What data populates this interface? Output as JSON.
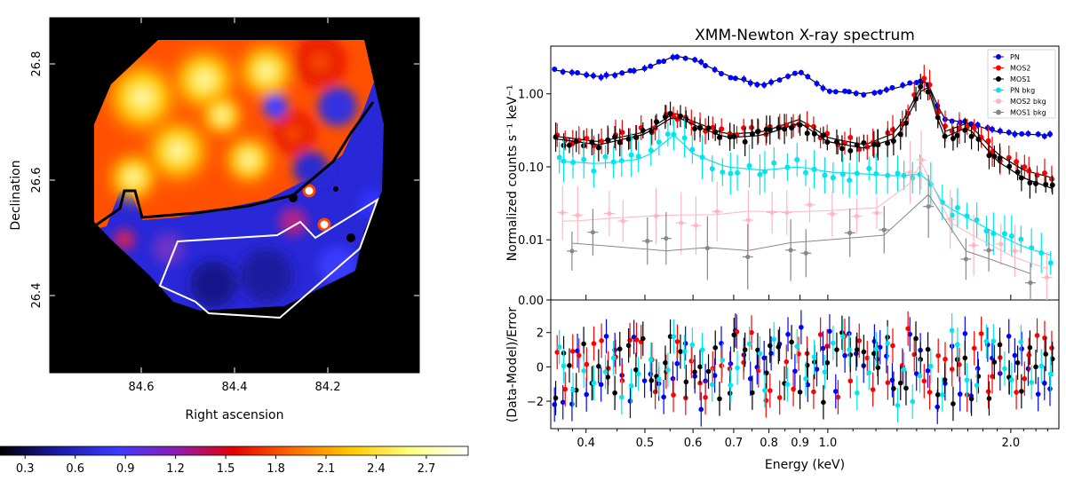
{
  "chart_data": [
    {
      "type": "heatmap",
      "xlabel": "Right ascension",
      "ylabel": "Declination",
      "xlim": [
        84.75,
        84.05
      ],
      "ylim": [
        26.24,
        26.87
      ],
      "x_ticks": [
        "84.6",
        "84.4",
        "84.2"
      ],
      "x_tick_values": [
        84.6,
        84.4,
        84.2
      ],
      "y_ticks": [
        "26.4",
        "26.6",
        "26.8"
      ],
      "y_tick_values": [
        26.4,
        26.6,
        26.8
      ],
      "colorbar": {
        "range": [
          0.15,
          2.95
        ],
        "ticks": [
          "0.3",
          "0.6",
          "0.9",
          "1.2",
          "1.5",
          "1.8",
          "2.1",
          "2.4",
          "2.7"
        ],
        "tick_values": [
          0.3,
          0.6,
          0.9,
          1.2,
          1.5,
          1.8,
          2.1,
          2.4,
          2.7
        ],
        "colors": [
          "#000000",
          "#1a1aa8",
          "#3b3bff",
          "#8c1cb4",
          "#e60000",
          "#ff6a00",
          "#ffc800",
          "#ffff80",
          "#ffffff"
        ]
      },
      "grid": false
    },
    {
      "type": "scatter",
      "title": "XMM-Newton X-ray spectrum",
      "xlabel": "Energy (keV)",
      "ylabel": "Normalized counts s⁻¹ keV⁻¹",
      "xscale": "log",
      "xlim": [
        0.35,
        2.4
      ],
      "ylim": [
        0.0015,
        4.5
      ],
      "x_ticks": [
        "0.4",
        "0.5",
        "0.6",
        "0.7",
        "0.8",
        "0.9",
        "1.0",
        "2.0"
      ],
      "x_tick_values": [
        0.4,
        0.5,
        0.6,
        0.7,
        0.8,
        0.9,
        1.0,
        2.0
      ],
      "y_ticks": [
        "0.00",
        "0.01",
        "0.10",
        "1.00"
      ],
      "y_tick_values": [
        0.0015,
        0.01,
        0.1,
        1.0
      ],
      "legend_position": "top-right",
      "series": [
        {
          "name": "PN",
          "color": "#0000ff",
          "x": [
            0.36,
            0.42,
            0.5,
            0.56,
            0.6,
            0.68,
            0.78,
            0.9,
            1.0,
            1.15,
            1.3,
            1.45,
            1.55,
            1.7,
            1.9,
            2.1,
            2.35
          ],
          "y": [
            2.1,
            1.7,
            2.2,
            3.3,
            3.0,
            1.8,
            1.3,
            2.0,
            1.1,
            1.0,
            1.2,
            1.6,
            0.45,
            0.4,
            0.3,
            0.28,
            0.27
          ]
        },
        {
          "name": "MOS2",
          "color": "#ff0000",
          "x": [
            0.36,
            0.42,
            0.5,
            0.56,
            0.6,
            0.68,
            0.78,
            0.9,
            1.0,
            1.15,
            1.3,
            1.45,
            1.55,
            1.7,
            1.9,
            2.1,
            2.35
          ],
          "y": [
            0.26,
            0.22,
            0.3,
            0.55,
            0.42,
            0.28,
            0.3,
            0.45,
            0.25,
            0.2,
            0.3,
            1.7,
            0.3,
            0.4,
            0.15,
            0.09,
            0.07
          ]
        },
        {
          "name": "MOS1",
          "color": "#000000",
          "x": [
            0.36,
            0.42,
            0.5,
            0.56,
            0.6,
            0.68,
            0.78,
            0.9,
            1.0,
            1.15,
            1.3,
            1.45,
            1.55,
            1.7,
            1.9,
            2.1,
            2.35
          ],
          "y": [
            0.24,
            0.2,
            0.28,
            0.5,
            0.38,
            0.25,
            0.27,
            0.4,
            0.22,
            0.18,
            0.25,
            1.5,
            0.25,
            0.35,
            0.12,
            0.07,
            0.05
          ]
        },
        {
          "name": "PN bkg",
          "color": "#00e5ee",
          "x": [
            0.36,
            0.42,
            0.5,
            0.56,
            0.6,
            0.68,
            0.78,
            0.9,
            1.0,
            1.15,
            1.3,
            1.45,
            1.55,
            1.7,
            1.9,
            2.1,
            2.35
          ],
          "y": [
            0.12,
            0.11,
            0.13,
            0.28,
            0.15,
            0.1,
            0.09,
            0.1,
            0.085,
            0.08,
            0.075,
            0.08,
            0.03,
            0.02,
            0.012,
            0.008,
            0.006
          ]
        },
        {
          "name": "MOS2 bkg",
          "color": "#ffb6c1",
          "x": [
            0.38,
            0.45,
            0.55,
            0.65,
            0.75,
            0.85,
            1.0,
            1.15,
            1.3,
            1.45,
            1.6,
            1.8,
            2.0,
            2.3
          ],
          "y": [
            0.018,
            0.02,
            0.022,
            0.022,
            0.025,
            0.024,
            0.025,
            0.027,
            0.028,
            0.15,
            0.015,
            0.01,
            0.006,
            0.004
          ]
        },
        {
          "name": "MOS1 bkg",
          "color": "#888888",
          "x": [
            0.38,
            0.45,
            0.55,
            0.65,
            0.75,
            0.85,
            1.0,
            1.15,
            1.3,
            1.45,
            1.6,
            1.8,
            2.0,
            2.3
          ],
          "y": [
            0.009,
            0.008,
            0.007,
            0.008,
            0.007,
            0.009,
            0.01,
            0.011,
            0.012,
            0.05,
            0.008,
            0.006,
            0.004,
            0.003
          ]
        }
      ],
      "residuals": {
        "ylabel": "(Data-Model)/Error",
        "ylim": [
          -3.6,
          3.9
        ],
        "y_ticks": [
          "2",
          "0",
          "−2"
        ],
        "y_tick_values": [
          2,
          0,
          -2
        ]
      }
    }
  ]
}
